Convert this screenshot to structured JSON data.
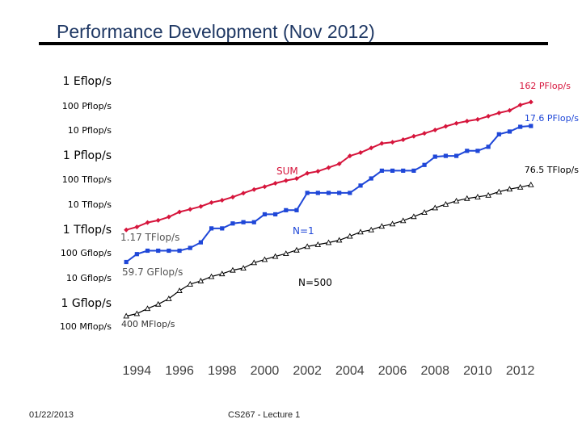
{
  "slide": {
    "title": "Performance Development (Nov 2012)",
    "footer_left": "01/22/2013",
    "footer_center": "CS267 - Lecture 1"
  },
  "chart_data": {
    "type": "line",
    "title": "Performance Development (Nov 2012)",
    "scale": "log10",
    "unit": "Gflop/s",
    "ylim": [
      0.1,
      1000000000
    ],
    "y_tick_labels": [
      {
        "label": "1 Eflop/s",
        "value": 1000000000
      },
      {
        "label": "100 Pflop/s",
        "value": 100000000
      },
      {
        "label": "10 Pflop/s",
        "value": 10000000
      },
      {
        "label": "1 Pflop/s",
        "value": 1000000
      },
      {
        "label": "100 Tflop/s",
        "value": 100000
      },
      {
        "label": "10 Tflop/s",
        "value": 10000
      },
      {
        "label": "1 Tflop/s",
        "value": 1000
      },
      {
        "label": "100 Gflop/s",
        "value": 100
      },
      {
        "label": "10 Gflop/s",
        "value": 10
      },
      {
        "label": "1 Gflop/s",
        "value": 1
      },
      {
        "label": "100 Mflop/s",
        "value": 0.1
      }
    ],
    "xlim": [
      1993,
      2013
    ],
    "x_tick_labels": [
      "1994",
      "1996",
      "1998",
      "2000",
      "2002",
      "2004",
      "2006",
      "2008",
      "2010",
      "2012"
    ],
    "x": [
      1993.5,
      1994,
      1994.5,
      1995,
      1995.5,
      1996,
      1996.5,
      1997,
      1997.5,
      1998,
      1998.5,
      1999,
      1999.5,
      2000,
      2000.5,
      2001,
      2001.5,
      2002,
      2002.5,
      2003,
      2003.5,
      2004,
      2004.5,
      2005,
      2005.5,
      2006,
      2006.5,
      2007,
      2007.5,
      2008,
      2008.5,
      2009,
      2009.5,
      2010,
      2010.5,
      2011,
      2011.5,
      2012,
      2012.5
    ],
    "series": [
      {
        "name": "SUM",
        "color": "#d6153c",
        "marker": "diamond",
        "values": [
          1170,
          1530,
          2310,
          2820,
          3880,
          6170,
          7870,
          10200,
          14700,
          18200,
          24400,
          35000,
          49100,
          63700,
          87700,
          113000,
          135000,
          221000,
          265000,
          373000,
          530000,
          1100000,
          1500000,
          2300000,
          3500000,
          3930000,
          4950000,
          6800000,
          8900000,
          12200000,
          16950000,
          22600000,
          27600000,
          32400000,
          43700000,
          58900000,
          74200000,
          123000000,
          162000000
        ]
      },
      {
        "name": "N=1",
        "color": "#1f47d8",
        "marker": "square",
        "values": [
          59.7,
          124,
          170,
          170,
          170,
          170,
          220,
          368,
          1340,
          1340,
          2120,
          2380,
          2380,
          4940,
          4940,
          7230,
          7230,
          35860,
          35860,
          35860,
          35860,
          35860,
          70720,
          136800,
          280600,
          280600,
          280600,
          280600,
          478200,
          1026000,
          1105000,
          1105000,
          1759000,
          1759000,
          2566000,
          8162000,
          10510000,
          16320000,
          17590000
        ]
      },
      {
        "name": "N=500",
        "color": "#000000",
        "marker": "triangle",
        "values": [
          0.4,
          0.5,
          0.8,
          1.2,
          2.0,
          4.2,
          7.7,
          10.4,
          15.5,
          20,
          28,
          34,
          56,
          75,
          100,
          130,
          180,
          250,
          300,
          360,
          450,
          650,
          960,
          1170,
          1640,
          2030,
          2740,
          4000,
          5900,
          9000,
          12600,
          17100,
          21500,
          24700,
          28900,
          39800,
          50900,
          60800,
          76500
        ]
      }
    ],
    "annotations": {
      "sum_label": "SUM",
      "n1_label": "N=1",
      "n500_label": "N=500",
      "sum_end": "162 PFlop/s",
      "n1_end": "17.6 PFlop/s",
      "n500_end": "76.5 TFlop/s",
      "sum_start": "1.17 TFlop/s",
      "n1_start": "59.7 GFlop/s",
      "n500_start": "400 MFlop/s"
    }
  }
}
